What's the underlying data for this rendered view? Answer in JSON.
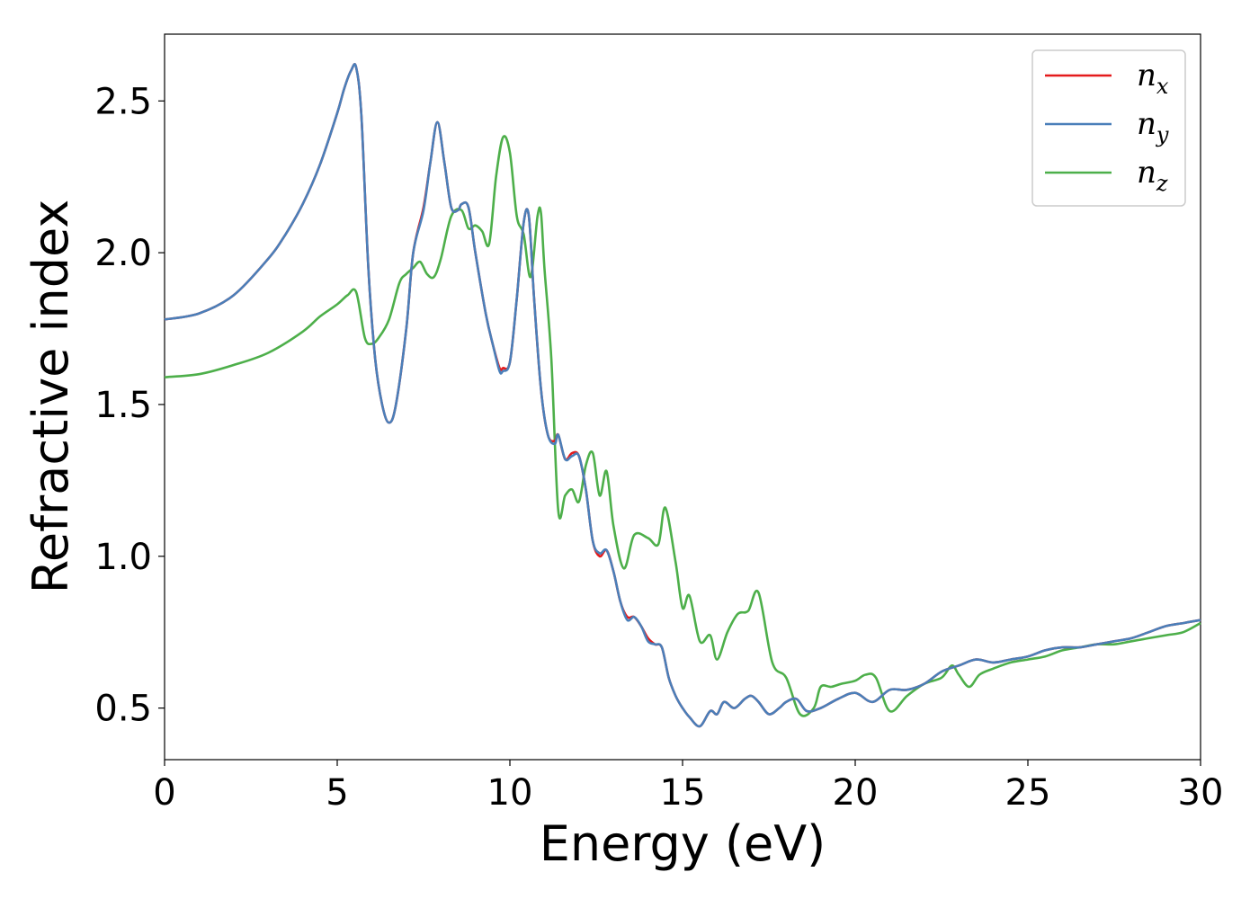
{
  "chart_data": {
    "type": "line",
    "xlabel": "Energy (eV)",
    "ylabel": "Refractive index",
    "xlim": [
      0,
      30
    ],
    "ylim": [
      0.33,
      2.72
    ],
    "xticks": [
      0,
      5,
      10,
      15,
      20,
      25,
      30
    ],
    "xtick_labels": [
      "0",
      "5",
      "10",
      "15",
      "20",
      "25",
      "30"
    ],
    "yticks": [
      0.5,
      1.0,
      1.5,
      2.0,
      2.5
    ],
    "ytick_labels": [
      "0.5",
      "1.0",
      "1.5",
      "2.0",
      "2.5"
    ],
    "grid": false,
    "legend_position": "top-right",
    "series": [
      {
        "name": "n_x",
        "name_base": "n",
        "name_sub": "x",
        "color": "#e41a1c",
        "x": [
          0,
          1,
          2,
          3,
          3.5,
          4,
          4.5,
          5,
          5.2,
          5.4,
          5.55,
          5.7,
          5.9,
          6.1,
          6.3,
          6.5,
          6.7,
          7.0,
          7.2,
          7.5,
          7.7,
          7.9,
          8.1,
          8.3,
          8.5,
          8.6,
          8.8,
          9.0,
          9.3,
          9.5,
          9.7,
          9.8,
          10.0,
          10.2,
          10.4,
          10.55,
          10.7,
          10.9,
          11.1,
          11.3,
          11.4,
          11.6,
          11.8,
          12.0,
          12.2,
          12.4,
          12.6,
          12.8,
          13.0,
          13.2,
          13.4,
          13.6,
          13.8,
          14.0,
          14.2,
          14.4,
          14.6,
          14.8,
          15.0,
          15.2,
          15.5,
          15.8,
          16.0,
          16.2,
          16.5,
          16.8,
          17.0,
          17.2,
          17.5,
          17.8,
          18.0,
          18.3,
          18.6,
          19.0,
          19.5,
          20.0,
          20.5,
          21.0,
          21.5,
          22.0,
          22.5,
          23.0,
          23.5,
          24.0,
          24.5,
          25.0,
          25.5,
          26.0,
          26.5,
          27.0,
          27.5,
          28.0,
          28.5,
          29.0,
          29.5,
          30.0
        ],
        "y": [
          1.78,
          1.8,
          1.86,
          1.98,
          2.06,
          2.16,
          2.29,
          2.46,
          2.54,
          2.6,
          2.61,
          2.45,
          1.95,
          1.65,
          1.5,
          1.44,
          1.5,
          1.75,
          2.0,
          2.15,
          2.3,
          2.43,
          2.3,
          2.15,
          2.14,
          2.16,
          2.15,
          2.0,
          1.8,
          1.7,
          1.62,
          1.62,
          1.64,
          1.85,
          2.1,
          2.12,
          1.85,
          1.55,
          1.4,
          1.38,
          1.4,
          1.32,
          1.34,
          1.33,
          1.22,
          1.05,
          1.0,
          1.02,
          0.95,
          0.85,
          0.8,
          0.8,
          0.77,
          0.73,
          0.71,
          0.7,
          0.6,
          0.54,
          0.5,
          0.47,
          0.44,
          0.49,
          0.48,
          0.52,
          0.5,
          0.53,
          0.54,
          0.52,
          0.48,
          0.5,
          0.52,
          0.53,
          0.49,
          0.5,
          0.53,
          0.55,
          0.52,
          0.56,
          0.56,
          0.58,
          0.62,
          0.64,
          0.66,
          0.65,
          0.66,
          0.67,
          0.69,
          0.7,
          0.7,
          0.71,
          0.72,
          0.73,
          0.75,
          0.77,
          0.78,
          0.79
        ]
      },
      {
        "name": "n_y",
        "name_base": "n",
        "name_sub": "y",
        "color": "#4a7fb9",
        "x": [
          0,
          1,
          2,
          3,
          3.5,
          4,
          4.5,
          5,
          5.2,
          5.4,
          5.55,
          5.7,
          5.9,
          6.1,
          6.3,
          6.5,
          6.7,
          7.0,
          7.2,
          7.5,
          7.7,
          7.9,
          8.1,
          8.3,
          8.5,
          8.6,
          8.8,
          9.0,
          9.3,
          9.5,
          9.7,
          9.8,
          10.0,
          10.2,
          10.4,
          10.55,
          10.7,
          10.9,
          11.1,
          11.3,
          11.4,
          11.6,
          11.8,
          12.0,
          12.2,
          12.4,
          12.6,
          12.8,
          13.0,
          13.2,
          13.4,
          13.6,
          13.8,
          14.0,
          14.2,
          14.4,
          14.6,
          14.8,
          15.0,
          15.2,
          15.5,
          15.8,
          16.0,
          16.2,
          16.5,
          16.8,
          17.0,
          17.2,
          17.5,
          17.8,
          18.0,
          18.3,
          18.6,
          19.0,
          19.5,
          20.0,
          20.5,
          21.0,
          21.5,
          22.0,
          22.5,
          23.0,
          23.5,
          24.0,
          24.5,
          25.0,
          25.5,
          26.0,
          26.5,
          27.0,
          27.5,
          28.0,
          28.5,
          29.0,
          29.5,
          30.0
        ],
        "y": [
          1.78,
          1.8,
          1.86,
          1.98,
          2.06,
          2.16,
          2.29,
          2.46,
          2.54,
          2.6,
          2.61,
          2.45,
          1.95,
          1.65,
          1.5,
          1.44,
          1.5,
          1.75,
          2.0,
          2.14,
          2.3,
          2.43,
          2.3,
          2.15,
          2.14,
          2.16,
          2.15,
          2.0,
          1.8,
          1.7,
          1.61,
          1.61,
          1.64,
          1.85,
          2.1,
          2.12,
          1.85,
          1.55,
          1.4,
          1.37,
          1.4,
          1.32,
          1.33,
          1.33,
          1.22,
          1.05,
          1.01,
          1.02,
          0.95,
          0.85,
          0.79,
          0.8,
          0.77,
          0.72,
          0.71,
          0.7,
          0.6,
          0.54,
          0.5,
          0.47,
          0.44,
          0.49,
          0.48,
          0.52,
          0.5,
          0.53,
          0.54,
          0.52,
          0.48,
          0.5,
          0.52,
          0.53,
          0.49,
          0.5,
          0.53,
          0.55,
          0.52,
          0.56,
          0.56,
          0.58,
          0.62,
          0.64,
          0.66,
          0.65,
          0.66,
          0.67,
          0.69,
          0.7,
          0.7,
          0.71,
          0.72,
          0.73,
          0.75,
          0.77,
          0.78,
          0.79
        ]
      },
      {
        "name": "n_z",
        "name_base": "n",
        "name_sub": "z",
        "color": "#4daf4a",
        "x": [
          0,
          1,
          2,
          3,
          4,
          4.5,
          5,
          5.3,
          5.55,
          5.8,
          6.0,
          6.2,
          6.5,
          6.8,
          7.0,
          7.2,
          7.4,
          7.6,
          7.8,
          8.0,
          8.3,
          8.6,
          8.8,
          9.0,
          9.2,
          9.4,
          9.6,
          9.8,
          10.0,
          10.2,
          10.4,
          10.6,
          10.8,
          10.9,
          11.0,
          11.2,
          11.4,
          11.6,
          11.8,
          12.0,
          12.2,
          12.4,
          12.6,
          12.8,
          13.0,
          13.3,
          13.6,
          14.0,
          14.3,
          14.5,
          14.8,
          15.0,
          15.2,
          15.5,
          15.8,
          16.0,
          16.3,
          16.6,
          16.9,
          17.2,
          17.6,
          18.0,
          18.4,
          18.8,
          19.0,
          19.3,
          19.6,
          20.0,
          20.3,
          20.6,
          21.0,
          21.5,
          22.0,
          22.5,
          22.8,
          23.0,
          23.3,
          23.6,
          24.0,
          24.5,
          25.0,
          25.5,
          26.0,
          26.5,
          27.0,
          27.5,
          28.0,
          28.5,
          29.0,
          29.5,
          30.0
        ],
        "y": [
          1.59,
          1.6,
          1.63,
          1.67,
          1.74,
          1.79,
          1.83,
          1.86,
          1.87,
          1.72,
          1.7,
          1.72,
          1.78,
          1.9,
          1.93,
          1.95,
          1.97,
          1.93,
          1.92,
          1.98,
          2.12,
          2.14,
          2.08,
          2.09,
          2.07,
          2.03,
          2.25,
          2.38,
          2.33,
          2.12,
          2.06,
          1.92,
          2.12,
          2.13,
          1.95,
          1.65,
          1.15,
          1.2,
          1.22,
          1.18,
          1.3,
          1.34,
          1.2,
          1.28,
          1.1,
          0.96,
          1.07,
          1.06,
          1.04,
          1.16,
          0.98,
          0.83,
          0.87,
          0.72,
          0.74,
          0.66,
          0.75,
          0.81,
          0.82,
          0.88,
          0.65,
          0.6,
          0.48,
          0.5,
          0.57,
          0.57,
          0.58,
          0.59,
          0.61,
          0.6,
          0.49,
          0.54,
          0.58,
          0.6,
          0.64,
          0.61,
          0.57,
          0.61,
          0.63,
          0.65,
          0.66,
          0.67,
          0.69,
          0.7,
          0.71,
          0.71,
          0.72,
          0.73,
          0.74,
          0.75,
          0.78
        ]
      }
    ]
  }
}
